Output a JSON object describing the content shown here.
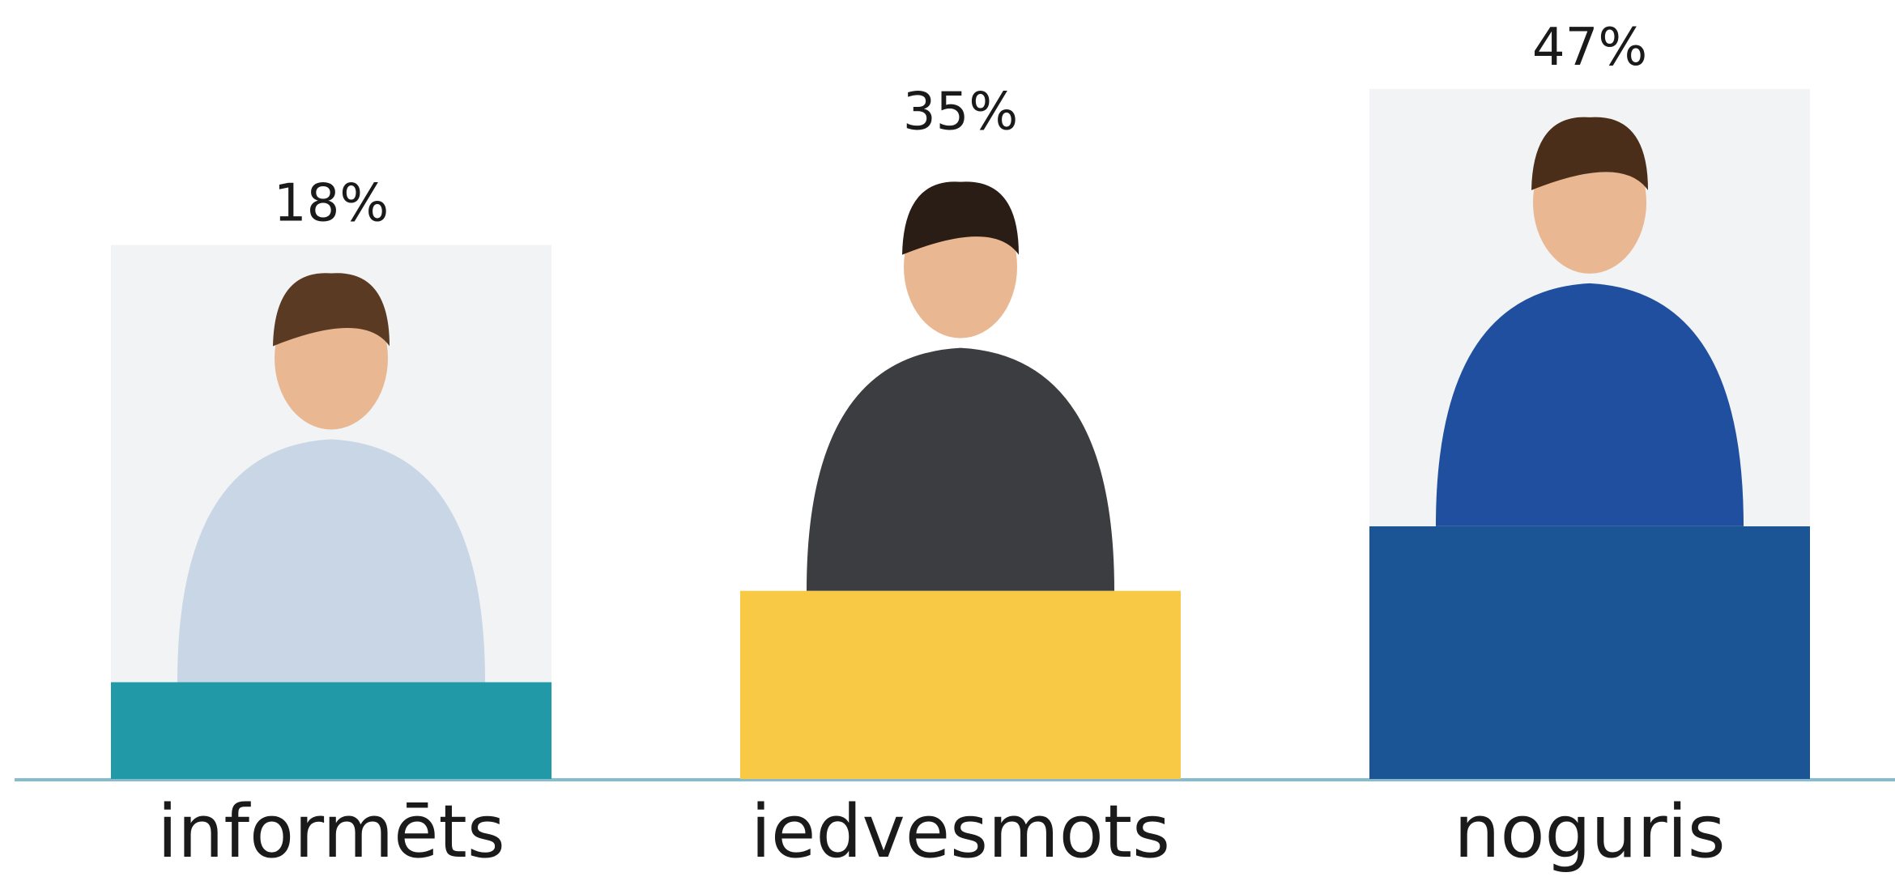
{
  "chart_data": {
    "type": "bar",
    "categories": [
      "informēts",
      "iedvesmots",
      "noguris"
    ],
    "values": [
      18,
      35,
      47
    ],
    "value_labels": [
      "18%",
      "35%",
      "47%"
    ],
    "colors": [
      "#2299a6",
      "#f7c945",
      "#1c5596"
    ]
  }
}
